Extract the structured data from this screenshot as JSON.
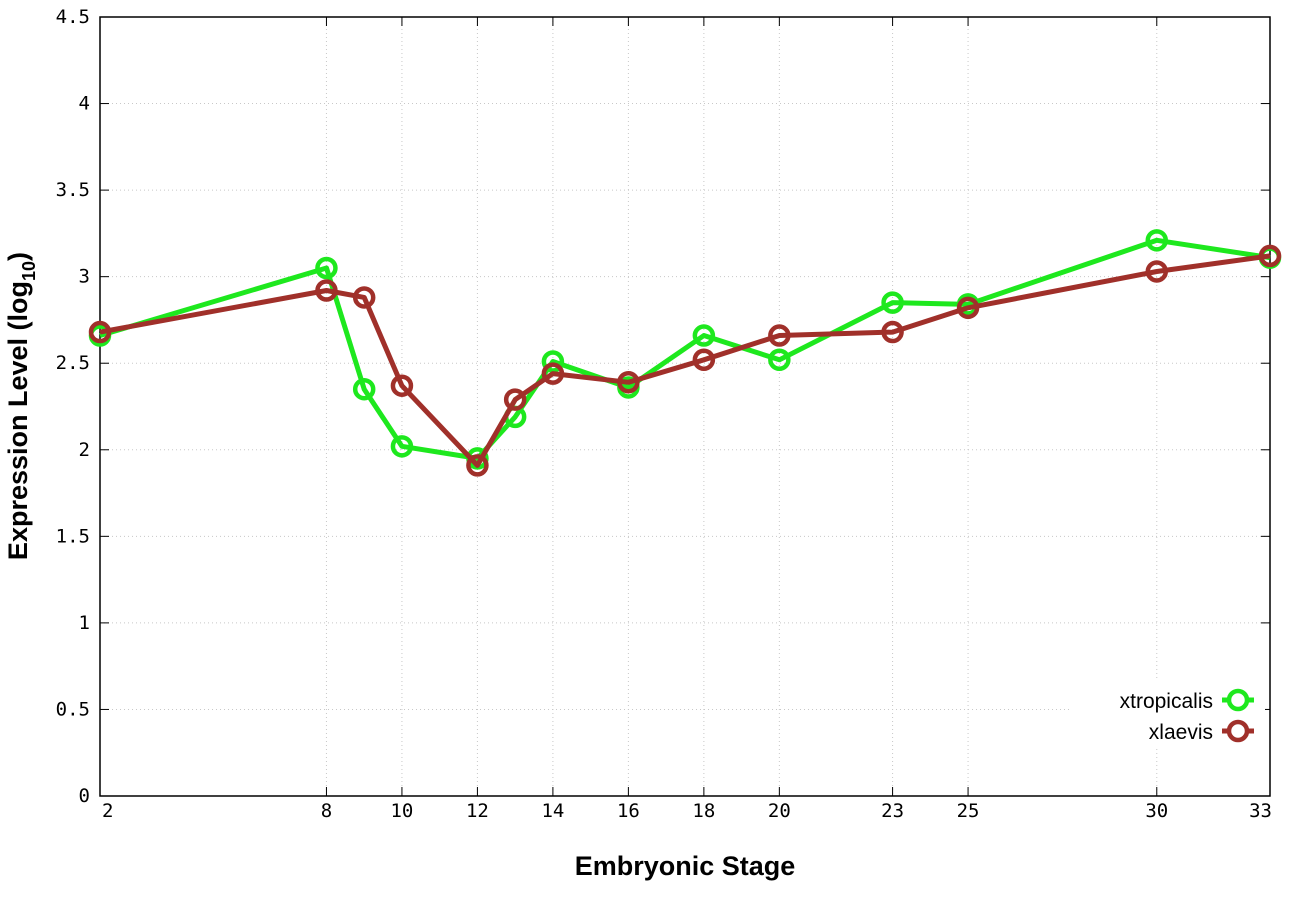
{
  "chart_data": {
    "type": "line",
    "title": "",
    "xlabel": "Embryonic Stage",
    "ylabel_main": "Expression Level (log",
    "ylabel_sub": "10",
    "ylabel_close": ")",
    "xlim": [
      2,
      33
    ],
    "ylim": [
      0,
      4.5
    ],
    "x_ticks": [
      2,
      8,
      10,
      12,
      14,
      16,
      18,
      20,
      23,
      25,
      30,
      33
    ],
    "y_ticks": [
      "0",
      "0.5",
      "1",
      "1.5",
      "2",
      "2.5",
      "3",
      "3.5",
      "4",
      "4.5"
    ],
    "grid": true,
    "legend_position": "bottom-right",
    "series": [
      {
        "name": "xtropicalis",
        "color": "#1ee81e",
        "x": [
          2,
          8,
          9,
          10,
          12,
          13,
          14,
          16,
          18,
          20,
          23,
          25,
          30,
          33
        ],
        "values": [
          2.66,
          3.05,
          2.35,
          2.02,
          1.95,
          2.19,
          2.51,
          2.36,
          2.66,
          2.52,
          2.85,
          2.84,
          3.21,
          3.11
        ]
      },
      {
        "name": "xlaevis",
        "color": "#a0302a",
        "x": [
          2,
          8,
          9,
          10,
          12,
          13,
          14,
          16,
          18,
          20,
          23,
          25,
          30,
          33
        ],
        "values": [
          2.68,
          2.92,
          2.88,
          2.37,
          1.91,
          2.29,
          2.44,
          2.39,
          2.52,
          2.66,
          2.68,
          2.82,
          3.03,
          3.12
        ]
      }
    ]
  }
}
